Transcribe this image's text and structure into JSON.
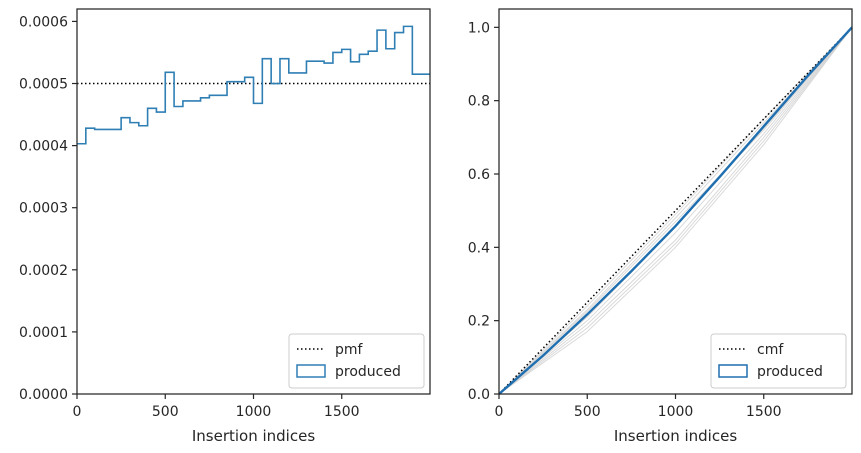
{
  "chart_data": [
    {
      "type": "line",
      "subtype": "step-histogram",
      "xlabel": "Insertion indices",
      "ylabel": "",
      "title": "",
      "xlim": [
        0,
        2000
      ],
      "ylim": [
        0,
        0.00062
      ],
      "xticks": [
        0,
        500,
        1000,
        1500
      ],
      "xtick_labels": [
        "0",
        "500",
        "1000",
        "1500"
      ],
      "yticks": [
        0,
        0.0001,
        0.0002,
        0.0003,
        0.0004,
        0.0005,
        0.0006
      ],
      "ytick_labels": [
        "0.0000",
        "0.0001",
        "0.0002",
        "0.0003",
        "0.0004",
        "0.0005",
        "0.0006"
      ],
      "legend_position": "bottom-right",
      "reference": {
        "name": "pmf",
        "style": "dotted",
        "color": "#000000",
        "y": 0.0005
      },
      "series": [
        {
          "name": "produced",
          "color": "#2f7fb5",
          "bin_edges": [
            0,
            50,
            100,
            250,
            300,
            350,
            400,
            450,
            500,
            550,
            600,
            700,
            750,
            850,
            950,
            1000,
            1050,
            1100,
            1150,
            1200,
            1300,
            1400,
            1450,
            1500,
            1550,
            1600,
            1650,
            1700,
            1750,
            1800,
            1850,
            1900,
            1950,
            2000
          ],
          "values": [
            0.000403,
            0.000428,
            0.000426,
            0.000445,
            0.000437,
            0.000432,
            0.00046,
            0.000454,
            0.000518,
            0.000463,
            0.000472,
            0.000477,
            0.000481,
            0.000503,
            0.00051,
            0.000468,
            0.00054,
            0.0005,
            0.00054,
            0.000517,
            0.000536,
            0.000533,
            0.00055,
            0.000555,
            0.000535,
            0.000547,
            0.000552,
            0.000586,
            0.000556,
            0.000582,
            0.000592,
            0.000515,
            0.000515
          ]
        }
      ]
    },
    {
      "type": "line",
      "xlabel": "Insertion indices",
      "ylabel": "",
      "title": "",
      "xlim": [
        0,
        2000
      ],
      "ylim": [
        0,
        1.05
      ],
      "xticks": [
        0,
        500,
        1000,
        1500
      ],
      "xtick_labels": [
        "0",
        "500",
        "1000",
        "1500"
      ],
      "yticks": [
        0,
        0.2,
        0.4,
        0.6,
        0.8,
        1.0
      ],
      "ytick_labels": [
        "0.0",
        "0.2",
        "0.4",
        "0.6",
        "0.8",
        "1.0"
      ],
      "legend_position": "bottom-right",
      "reference": {
        "name": "cmf",
        "style": "dotted",
        "color": "#000000",
        "points": [
          [
            0,
            0
          ],
          [
            2000,
            1
          ]
        ]
      },
      "series": [
        {
          "name": "produced",
          "color": "#1f6fb0",
          "x": [
            0,
            250,
            500,
            750,
            1000,
            1250,
            1500,
            1750,
            2000
          ],
          "y": [
            0,
            0.105,
            0.217,
            0.335,
            0.458,
            0.592,
            0.73,
            0.868,
            1.0
          ]
        }
      ],
      "background_series_color": "#d0d0d0",
      "background_series": [
        {
          "x": [
            0,
            500,
            1000,
            1500,
            2000
          ],
          "y": [
            0,
            0.24,
            0.49,
            0.75,
            1.0
          ]
        },
        {
          "x": [
            0,
            500,
            1000,
            1500,
            2000
          ],
          "y": [
            0,
            0.23,
            0.48,
            0.74,
            1.0
          ]
        },
        {
          "x": [
            0,
            500,
            1000,
            1500,
            2000
          ],
          "y": [
            0,
            0.2,
            0.44,
            0.71,
            1.0
          ]
        },
        {
          "x": [
            0,
            500,
            1000,
            1500,
            2000
          ],
          "y": [
            0,
            0.19,
            0.42,
            0.7,
            1.0
          ]
        },
        {
          "x": [
            0,
            500,
            1000,
            1500,
            2000
          ],
          "y": [
            0,
            0.18,
            0.41,
            0.69,
            1.0
          ]
        },
        {
          "x": [
            0,
            500,
            1000,
            1500,
            2000
          ],
          "y": [
            0,
            0.17,
            0.4,
            0.68,
            1.0
          ]
        },
        {
          "x": [
            0,
            500,
            1000,
            1500,
            2000
          ],
          "y": [
            0,
            0.225,
            0.47,
            0.72,
            1.0
          ]
        },
        {
          "x": [
            0,
            500,
            1000,
            1500,
            2000
          ],
          "y": [
            0,
            0.21,
            0.455,
            0.725,
            1.0
          ]
        }
      ]
    }
  ]
}
